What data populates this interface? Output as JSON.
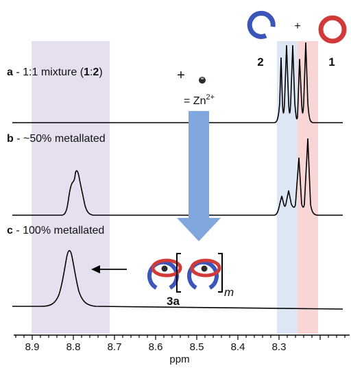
{
  "labels": {
    "a": {
      "letter": "a",
      "text": " - 1:1 mixture (",
      "b1": "1",
      "colon": ":",
      "b2": "2",
      "close": ")"
    },
    "b": {
      "letter": "b",
      "text": " - ~50% metallated"
    },
    "c": {
      "letter": "c",
      "text": " - 100% metallated"
    }
  },
  "legend": {
    "plus_top": "+",
    "macrocycle_2": "2",
    "macrocycle_1": "1",
    "plus_zn": "+",
    "zn_eq": "= Zn",
    "zn_sup": "2+",
    "complex": "3a",
    "subscript": "m"
  },
  "axis": {
    "label": "ppm",
    "ticks": [
      "8.9",
      "8.8",
      "8.7",
      "8.6",
      "8.5",
      "8.4",
      "8.3"
    ]
  },
  "colors": {
    "blue": "#3b55b8",
    "red": "#d23a3a",
    "lavender_band": "#e6dff0",
    "blue_band": "#dce6f5",
    "red_band": "#f8d6d6",
    "arrow": "#7fa6dd"
  }
}
